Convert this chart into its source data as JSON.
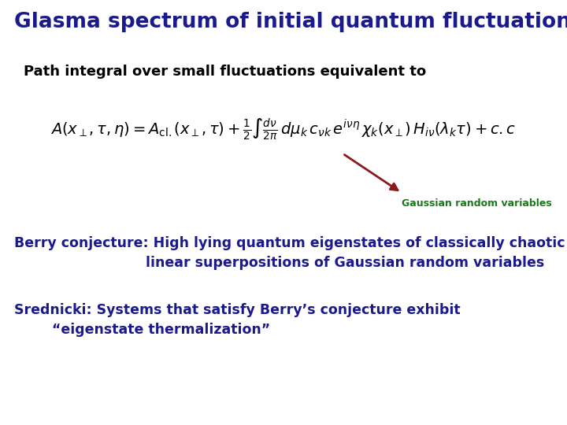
{
  "title": "Glasma spectrum of initial quantum fluctuations",
  "title_color": "#1a1a8c",
  "title_fontsize": 19,
  "subtitle": "Path integral over small fluctuations equivalent to",
  "subtitle_color": "#000000",
  "subtitle_fontsize": 13,
  "eq_color": "#000000",
  "eq_fontsize": 14,
  "annotation_text": "Gaussian random variables",
  "annotation_color": "#1a7a1a",
  "annotation_fontsize": 9,
  "arrow_color": "#8b1a1a",
  "berry_line1": "Berry conjecture: High lying quantum eigenstates of classically chaotic systems,",
  "berry_line2": "linear superpositions of Gaussian random variables",
  "berry_color": "#1a1a8c",
  "berry_fontsize": 12.5,
  "srednicki_line1": "Srednicki: Systems that satisfy Berry’s conjecture exhibit",
  "srednicki_line2": "“eigenstate thermalization”",
  "srednicki_color": "#1a1a8c",
  "srednicki_fontsize": 12.5,
  "background_color": "#ffffff"
}
